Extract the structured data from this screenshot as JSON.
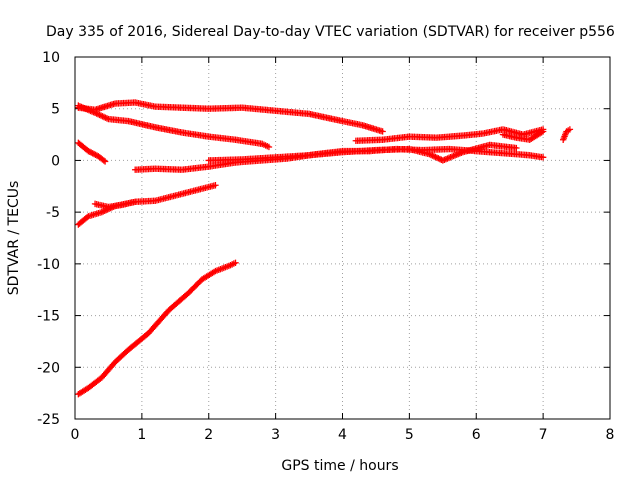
{
  "chart_data": {
    "type": "scatter",
    "title": "Day 335 of 2016, Sidereal Day-to-day VTEC variation (SDTVAR) for receiver p556",
    "xlabel": "GPS time / hours",
    "ylabel": "SDTVAR / TECUs",
    "xlim": [
      0,
      8
    ],
    "ylim": [
      -25,
      10
    ],
    "xticks": [
      0,
      1,
      2,
      3,
      4,
      5,
      6,
      7,
      8
    ],
    "yticks": [
      -25,
      -20,
      -15,
      -10,
      -5,
      0,
      5,
      10
    ],
    "xtick_labels": [
      "0",
      "1",
      "2",
      "3",
      "4",
      "5",
      "6",
      "7",
      "8"
    ],
    "ytick_labels": [
      "-25",
      "-20",
      "-15",
      "-10",
      "-5",
      "0",
      "5",
      "10"
    ],
    "grid": true,
    "legend": "none",
    "marker": "plus",
    "color": "#ff0000",
    "series": [
      {
        "x": [
          0.05,
          0.3,
          0.6,
          0.9,
          1.2,
          1.6,
          2.0,
          2.5,
          3.0,
          3.5,
          4.0,
          4.3,
          4.6
        ],
        "values": [
          5.1,
          4.9,
          5.5,
          5.6,
          5.2,
          5.1,
          5.0,
          5.1,
          4.8,
          4.5,
          3.8,
          3.4,
          2.8
        ]
      },
      {
        "x": [
          0.05,
          0.3,
          0.5,
          0.8,
          1.2,
          1.6,
          2.0,
          2.4,
          2.8,
          2.9
        ],
        "values": [
          5.3,
          4.6,
          4.0,
          3.8,
          3.2,
          2.7,
          2.3,
          2.0,
          1.6,
          1.3
        ]
      },
      {
        "x": [
          0.05,
          0.2,
          0.35,
          0.45
        ],
        "values": [
          1.7,
          0.9,
          0.4,
          -0.1
        ]
      },
      {
        "x": [
          0.9,
          1.2,
          1.6,
          2.0,
          2.4,
          2.8,
          3.2,
          3.6,
          4.0,
          4.4,
          4.8,
          5.2,
          5.6,
          6.0,
          6.4,
          6.8,
          7.0
        ],
        "values": [
          -0.9,
          -0.8,
          -0.9,
          -0.6,
          -0.2,
          0.0,
          0.2,
          0.6,
          0.9,
          0.9,
          1.1,
          1.0,
          1.1,
          0.9,
          0.7,
          0.5,
          0.3
        ]
      },
      {
        "x": [
          2.0,
          2.5,
          3.0,
          3.5,
          4.0,
          4.5,
          5.0,
          5.3,
          5.5,
          5.8,
          6.2,
          6.6
        ],
        "values": [
          0.0,
          0.1,
          0.3,
          0.5,
          0.8,
          1.0,
          1.1,
          0.6,
          0.0,
          0.8,
          1.5,
          1.2
        ]
      },
      {
        "x": [
          4.2,
          4.6,
          5.0,
          5.4,
          5.8,
          6.1,
          6.4,
          6.7,
          7.0
        ],
        "values": [
          1.9,
          2.0,
          2.3,
          2.2,
          2.4,
          2.6,
          3.0,
          2.5,
          3.0
        ]
      },
      {
        "x": [
          6.4,
          6.6,
          6.8,
          7.0
        ],
        "values": [
          2.5,
          2.2,
          2.0,
          2.8
        ]
      },
      {
        "x": [
          7.3,
          7.35,
          7.4
        ],
        "values": [
          2.0,
          2.8,
          3.0
        ]
      },
      {
        "x": [
          0.05,
          0.2,
          0.4,
          0.6,
          0.9,
          1.2,
          1.5,
          1.8,
          2.1
        ],
        "values": [
          -6.2,
          -5.4,
          -5.0,
          -4.4,
          -4.0,
          -3.9,
          -3.4,
          -2.9,
          -2.4
        ]
      },
      {
        "x": [
          0.3,
          0.5,
          0.7,
          0.9
        ],
        "values": [
          -4.2,
          -4.5,
          -4.3,
          -4.0
        ]
      },
      {
        "x": [
          0.05,
          0.2,
          0.4,
          0.6,
          0.8,
          1.1,
          1.4,
          1.7,
          1.9,
          2.1,
          2.3,
          2.4
        ],
        "values": [
          -22.6,
          -22.0,
          -21.0,
          -19.5,
          -18.3,
          -16.7,
          -14.5,
          -12.8,
          -11.5,
          -10.7,
          -10.2,
          -9.9
        ]
      }
    ]
  }
}
